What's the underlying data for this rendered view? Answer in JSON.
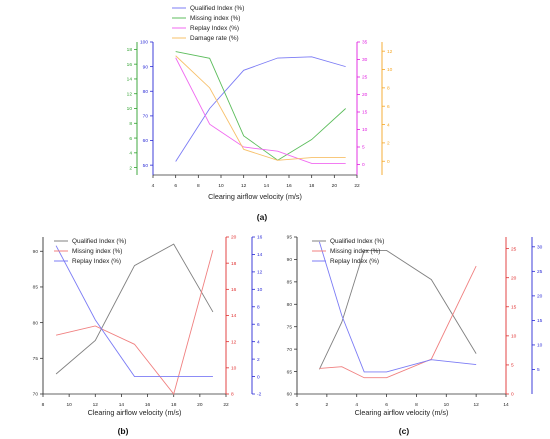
{
  "chart_data": [
    {
      "label": "(a)",
      "type": "line",
      "x": [
        6,
        9,
        12,
        15,
        18,
        21
      ],
      "xlabel": "Clearing airflow velocity (m/s)",
      "xlim": [
        4,
        22
      ],
      "xticks": [
        "4",
        "6",
        "8",
        "10",
        "12",
        "14",
        "16",
        "18",
        "20",
        "22"
      ],
      "legend_position": "top",
      "axes": [
        {
          "id": "green",
          "side": "left-outer",
          "color": "#2ca02c",
          "ylim": [
            1,
            19
          ],
          "ticks": [
            "2",
            "4",
            "6",
            "8",
            "10",
            "12",
            "14",
            "16",
            "18"
          ]
        },
        {
          "id": "blue",
          "side": "left-inner",
          "color": "#2a2ad6",
          "ylim": [
            46,
            100
          ],
          "ticks": [
            "50",
            "60",
            "70",
            "80",
            "90",
            "100"
          ]
        },
        {
          "id": "magenta",
          "side": "right-inner",
          "color": "#e01fe0",
          "ylim": [
            -3,
            35
          ],
          "ticks": [
            "0",
            "5",
            "10",
            "15",
            "20",
            "25",
            "30",
            "35"
          ]
        },
        {
          "id": "orange",
          "side": "right-outer",
          "color": "#f5a623",
          "ylim": [
            -1.5,
            13
          ],
          "ticks": [
            "0",
            "2",
            "4",
            "6",
            "8",
            "10",
            "12"
          ]
        }
      ],
      "series": [
        {
          "name": "Qualified Index (%)",
          "axis": "blue",
          "color": "#7c7cf5",
          "values": [
            51.5,
            73,
            88.5,
            93.5,
            94,
            90
          ]
        },
        {
          "name": "Missing index (%)",
          "axis": "green",
          "color": "#5cbd5c",
          "values": [
            17.7,
            16.8,
            6.3,
            3.0,
            5.8,
            10.0
          ]
        },
        {
          "name": "Replay Index (%)",
          "axis": "magenta",
          "color": "#f06af0",
          "values": [
            30.5,
            11.5,
            5.0,
            3.8,
            0.3,
            0.3
          ]
        },
        {
          "name": "Damage rate (%)",
          "axis": "orange",
          "color": "#f7c06a",
          "values": [
            11.5,
            8.0,
            1.3,
            0.1,
            0.4,
            0.4
          ]
        }
      ]
    },
    {
      "label": "(b)",
      "type": "line",
      "x": [
        9,
        12,
        15,
        18,
        21
      ],
      "xlabel": "Clearing airflow velocity (m/s)",
      "xlim": [
        8,
        22
      ],
      "xticks": [
        "8",
        "10",
        "12",
        "14",
        "16",
        "18",
        "20",
        "22"
      ],
      "legend_position": "top-left",
      "axes": [
        {
          "id": "left",
          "side": "left",
          "color": "#333333",
          "ylim": [
            70,
            92
          ],
          "ticks": [
            "70",
            "75",
            "80",
            "85",
            "90"
          ]
        },
        {
          "id": "red",
          "side": "right-inner",
          "color": "#e03030",
          "ylim": [
            8,
            20
          ],
          "ticks": [
            "8",
            "10",
            "12",
            "14",
            "16",
            "18",
            "20"
          ]
        },
        {
          "id": "blue",
          "side": "right-outer",
          "color": "#2a2ad6",
          "ylim": [
            -2,
            16
          ],
          "ticks": [
            "-2",
            "0",
            "2",
            "4",
            "6",
            "8",
            "10",
            "12",
            "14",
            "16"
          ]
        }
      ],
      "series": [
        {
          "name": "Qualified Index (%)",
          "axis": "left",
          "color": "#808080",
          "values": [
            72.8,
            77.5,
            88.0,
            91.0,
            81.5
          ]
        },
        {
          "name": "Missing index (%)",
          "axis": "red",
          "color": "#f08080",
          "values": [
            12.5,
            13.2,
            11.8,
            8.0,
            19.0
          ]
        },
        {
          "name": "Replay Index (%)",
          "axis": "blue",
          "color": "#7c7cf5",
          "values": [
            15.0,
            6.5,
            0.0,
            0.0,
            0.0
          ]
        }
      ]
    },
    {
      "label": "(c)",
      "type": "line",
      "x": [
        1.5,
        3,
        4.5,
        6,
        9,
        12
      ],
      "xlabel": "Clearing airflow velocity (m/s)",
      "xlim": [
        0,
        14
      ],
      "xticks": [
        "0",
        "2",
        "4",
        "6",
        "8",
        "10",
        "12",
        "14"
      ],
      "legend_position": "top-left",
      "axes": [
        {
          "id": "left",
          "side": "left",
          "color": "#333333",
          "ylim": [
            60,
            95
          ],
          "ticks": [
            "60",
            "65",
            "70",
            "75",
            "80",
            "85",
            "90",
            "95"
          ]
        },
        {
          "id": "red",
          "side": "right-inner",
          "color": "#e03030",
          "ylim": [
            0,
            27
          ],
          "ticks": [
            "0",
            "5",
            "10",
            "15",
            "20",
            "25"
          ]
        },
        {
          "id": "blue",
          "side": "right-outer",
          "color": "#2a2ad6",
          "ylim": [
            0,
            32
          ],
          "ticks": [
            "5",
            "10",
            "15",
            "20",
            "25",
            "30"
          ]
        }
      ],
      "series": [
        {
          "name": "Qualified Index (%)",
          "axis": "left",
          "color": "#808080",
          "values": [
            65.5,
            76.0,
            92.0,
            92.0,
            85.5,
            69.0
          ]
        },
        {
          "name": "Missing index (%)",
          "axis": "red",
          "color": "#f08080",
          "values": [
            4.4,
            4.7,
            2.8,
            2.8,
            6.0,
            22.0
          ]
        },
        {
          "name": "Replay Index (%)",
          "axis": "blue",
          "color": "#7c7cf5",
          "values": [
            31.0,
            16.0,
            4.5,
            4.5,
            7.0,
            6.0
          ]
        }
      ]
    }
  ]
}
